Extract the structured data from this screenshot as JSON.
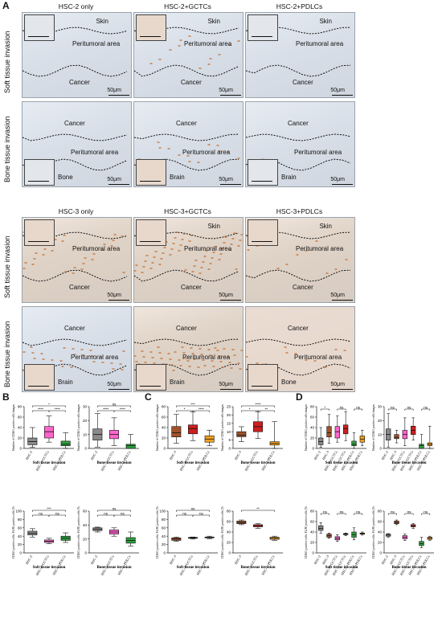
{
  "panel_letters": {
    "a": "A",
    "b": "B",
    "c": "C",
    "d": "D"
  },
  "histology_top": {
    "columns": [
      "HSC-2 only",
      "HSC-2+GCTCs",
      "HSC-2+PDLCs"
    ],
    "row_labels": [
      "Soft tissue invasion",
      "Bone tissue invasion"
    ],
    "soft": [
      {
        "skin": "Skin",
        "peri": "Peritumoral area",
        "cancer": "Cancer",
        "scale": "50μm"
      },
      {
        "skin": "Skin",
        "peri": "Peritumoral area",
        "cancer": "Cancer",
        "scale": "50μm"
      },
      {
        "skin": "Skin",
        "peri": "Peritumoral area",
        "cancer": "Cancer",
        "scale": "50μm"
      }
    ],
    "bone": [
      {
        "cancer": "Cancer",
        "peri": "Peritumoral area",
        "other": "Bone",
        "scale": "50μm"
      },
      {
        "cancer": "Cancer",
        "peri": "Peritumoral area",
        "other": "Brain",
        "scale": "50μm"
      },
      {
        "cancer": "Cancer",
        "peri": "Peritumoral area",
        "other": "Brain",
        "scale": "50μm"
      }
    ]
  },
  "histology_bottom": {
    "columns": [
      "HSC-3 only",
      "HSC-3+GCTCs",
      "HSC-3+PDLCs"
    ],
    "row_labels": [
      "Soft tissue invasion",
      "Bone tissue invasion"
    ],
    "soft": [
      {
        "skin": "",
        "peri": "Peritumoral area",
        "cancer": "Cancer",
        "scale": "50μm"
      },
      {
        "skin": "Skin",
        "peri": "Peritumoral area",
        "cancer": "Cancer",
        "scale": "50μm"
      },
      {
        "skin": "Skin",
        "peri": "Peritumoral area",
        "cancer": "Cancer",
        "scale": "50μm"
      }
    ],
    "bone": [
      {
        "cancer": "Cancer",
        "peri": "Peritumoral area",
        "other": "Brain",
        "scale": "50μm"
      },
      {
        "cancer": "Cancer",
        "peri": "Peritumoral area",
        "other": "Brain",
        "scale": "50μm"
      },
      {
        "cancer": "Cancer",
        "peri": "Peritumoral area",
        "other": "Bone",
        "scale": "50μm"
      }
    ]
  },
  "chart_data": [
    {
      "panel": "B",
      "type": "box",
      "title": "Soft tissue invasion",
      "ylabel": "Number of CD163 positive cells/images",
      "ylim": [
        0,
        80
      ],
      "yticks": [
        0,
        20,
        40,
        60,
        80
      ],
      "categories": [
        "HSC-2",
        "HSC-2+GCTCs",
        "HSC-2+PDLCs"
      ],
      "colors": [
        "#8a8a8a",
        "#ff66cc",
        "#2e9e3e"
      ],
      "boxes": [
        [
          2,
          7,
          13,
          20,
          40
        ],
        [
          12,
          20,
          32,
          42,
          62
        ],
        [
          0,
          5,
          8,
          14,
          30
        ]
      ],
      "sig": [
        "*",
        "****",
        "****"
      ]
    },
    {
      "panel": "B",
      "type": "box",
      "title": "Bone tissue invasion",
      "ylabel": "Number of CD163 positive cells/images",
      "ylim": [
        0,
        30
      ],
      "yticks": [
        0,
        10,
        20,
        30
      ],
      "categories": [
        "HSC-2",
        "HSC-2+GCTCs",
        "HSC-2+PDLCs"
      ],
      "colors": [
        "#8a8a8a",
        "#ff66cc",
        "#2e9e3e"
      ],
      "boxes": [
        [
          1,
          6,
          10,
          14,
          25
        ],
        [
          2,
          7,
          10,
          13,
          22
        ],
        [
          0,
          0,
          2,
          3,
          10
        ]
      ],
      "sig": [
        "ns",
        "****",
        "****"
      ]
    },
    {
      "panel": "B",
      "type": "bar",
      "title": "Soft tissue invasion",
      "ylabel": "CD163 positive cells/ F4/80 positive cells [%]",
      "ylim": [
        0,
        100
      ],
      "yticks": [
        0,
        20,
        40,
        60,
        80,
        100
      ],
      "categories": [
        "HSC-2",
        "HSC-2+GCTCs",
        "HSC-2+PDLCs"
      ],
      "colors": [
        "#8a8a8a",
        "#ff66cc",
        "#2e9e3e"
      ],
      "boxes": [
        [
          38,
          43,
          47,
          52,
          58
        ],
        [
          22,
          25,
          28,
          31,
          35
        ],
        [
          25,
          30,
          35,
          40,
          48
        ]
      ],
      "sig": [
        "***",
        "ns",
        "ns"
      ]
    },
    {
      "panel": "B",
      "type": "bar",
      "title": "Bone tissue invasion",
      "ylabel": "CD163 positive cells/ F4/80 positive cells [%]",
      "ylim": [
        0,
        60
      ],
      "yticks": [
        0,
        20,
        40,
        60
      ],
      "categories": [
        "HSC-2",
        "HSC-2+GCTCs",
        "HSC-2+PDLCs"
      ],
      "colors": [
        "#8a8a8a",
        "#ff66cc",
        "#2e9e3e"
      ],
      "boxes": [
        [
          30,
          32,
          34,
          36,
          37
        ],
        [
          24,
          27,
          30,
          33,
          36
        ],
        [
          10,
          14,
          18,
          22,
          30
        ]
      ],
      "sig": [
        "ns",
        "ns",
        "ns"
      ]
    },
    {
      "panel": "C",
      "type": "box",
      "title": "Soft tissue invasion",
      "ylabel": "Number of CD163 positive cells/images",
      "ylim": [
        0,
        80
      ],
      "yticks": [
        0,
        20,
        40,
        60,
        80
      ],
      "categories": [
        "HSC-3",
        "HSC-3+GCTCs",
        "HSC-3+PDLCs"
      ],
      "colors": [
        "#a0522d",
        "#cc1f1f",
        "#f7a21b"
      ],
      "boxes": [
        [
          10,
          22,
          30,
          42,
          65
        ],
        [
          15,
          28,
          38,
          45,
          70
        ],
        [
          5,
          12,
          18,
          24,
          35
        ]
      ],
      "sig": [
        "***",
        "*",
        "****"
      ]
    },
    {
      "panel": "C",
      "type": "box",
      "title": "Bone tissue invasion",
      "ylabel": "Number of CD163 positive cells/images",
      "ylim": [
        0,
        25
      ],
      "yticks": [
        0,
        5,
        10,
        15,
        20,
        25
      ],
      "categories": [
        "HSC-3",
        "HSC-3+GCTCs",
        "HSC-3+PDLCs"
      ],
      "colors": [
        "#a0522d",
        "#cc1f1f",
        "#f7a21b"
      ],
      "boxes": [
        [
          4,
          7,
          8,
          10,
          13
        ],
        [
          6,
          10,
          13,
          16,
          22
        ],
        [
          0,
          2,
          3,
          4,
          16
        ]
      ],
      "sig": [
        "****",
        "*",
        "**"
      ]
    },
    {
      "panel": "C",
      "type": "bar",
      "title": "Soft tissue invasion",
      "ylabel": "CD163 positive cells/ F4/80 positive cells [%]",
      "ylim": [
        0,
        100
      ],
      "yticks": [
        0,
        20,
        40,
        60,
        80,
        100
      ],
      "categories": [
        "HSC-3",
        "HSC-3+GCTCs",
        "HSC-3+PDLCs"
      ],
      "colors": [
        "#a0522d",
        "#cc1f1f",
        "#f7a21b"
      ],
      "boxes": [
        [
          28,
          30,
          33,
          36,
          38
        ],
        [
          33,
          35,
          36,
          37,
          38
        ],
        [
          34,
          36,
          37,
          38,
          40
        ]
      ],
      "sig": [
        "ns",
        "ns",
        "ns"
      ]
    },
    {
      "panel": "C",
      "type": "bar",
      "title": "Bone tissue invasion",
      "ylabel": "CD163 positive cells/ F4/80 positive cells [%]",
      "ylim": [
        0,
        80
      ],
      "yticks": [
        0,
        20,
        40,
        60,
        80
      ],
      "categories": [
        "HSC-3",
        "HSC-3+GCTCs",
        "HSC-3+PDLCs"
      ],
      "colors": [
        "#a0522d",
        "#cc1f1f",
        "#f7a21b"
      ],
      "boxes": [
        [
          54,
          56,
          58,
          61,
          63
        ],
        [
          47,
          50,
          52,
          54,
          56
        ],
        [
          24,
          26,
          28,
          30,
          32
        ]
      ],
      "sig": [
        "**",
        "",
        ""
      ]
    },
    {
      "panel": "D",
      "type": "box",
      "title": "Soft tissue invasion",
      "ylabel": "Number of CD163 positive cells/images",
      "ylim": [
        0,
        80
      ],
      "yticks": [
        0,
        20,
        40,
        60,
        80
      ],
      "categories": [
        "HSC-2",
        "HSC-3",
        "HSC-2+GCTCs",
        "HSC-3+GCTCs",
        "HSC-2+PDLCs",
        "HSC-3+PDLCs"
      ],
      "colors": [
        "#8a8a8a",
        "#a0522d",
        "#ff66cc",
        "#cc1f1f",
        "#2e9e3e",
        "#f7a21b"
      ],
      "boxes": [
        [
          2,
          7,
          13,
          20,
          40
        ],
        [
          10,
          22,
          30,
          42,
          65
        ],
        [
          12,
          20,
          32,
          42,
          62
        ],
        [
          15,
          28,
          38,
          45,
          70
        ],
        [
          0,
          5,
          8,
          14,
          30
        ],
        [
          5,
          12,
          18,
          24,
          35
        ]
      ],
      "sig": [
        "*",
        "ns",
        "ns"
      ]
    },
    {
      "panel": "D",
      "type": "box",
      "title": "Bone tissue invasion",
      "ylabel": "Number of CD163 positive cells/images",
      "ylim": [
        0,
        30
      ],
      "yticks": [
        0,
        10,
        20,
        30
      ],
      "categories": [
        "HSC-2",
        "HSC-3",
        "HSC-2+GCTCs",
        "HSC-3+GCTCs",
        "HSC-2+PDLCs",
        "HSC-3+PDLCs"
      ],
      "colors": [
        "#8a8a8a",
        "#a0522d",
        "#ff66cc",
        "#cc1f1f",
        "#2e9e3e",
        "#f7a21b"
      ],
      "boxes": [
        [
          1,
          6,
          10,
          14,
          25
        ],
        [
          4,
          7,
          8,
          10,
          13
        ],
        [
          2,
          7,
          10,
          13,
          22
        ],
        [
          6,
          10,
          13,
          16,
          22
        ],
        [
          0,
          0,
          2,
          3,
          10
        ],
        [
          0,
          2,
          3,
          4,
          16
        ]
      ],
      "sig": [
        "ns",
        "ns",
        "ns"
      ]
    },
    {
      "panel": "D",
      "type": "bar",
      "title": "Soft tissue invasion",
      "ylabel": "CD163 positive cells/ F4/80 positive cells [%]",
      "ylim": [
        0,
        80
      ],
      "yticks": [
        0,
        20,
        40,
        60,
        80
      ],
      "categories": [
        "HSC-2",
        "HSC-3",
        "HSC-2+GCTCs",
        "HSC-3+GCTCs",
        "HSC-2+PDLCs",
        "HSC-3+PDLCs"
      ],
      "colors": [
        "#8a8a8a",
        "#a0522d",
        "#ff66cc",
        "#cc1f1f",
        "#2e9e3e",
        "#f7a21b"
      ],
      "boxes": [
        [
          38,
          43,
          47,
          52,
          58
        ],
        [
          28,
          30,
          33,
          36,
          38
        ],
        [
          22,
          25,
          28,
          31,
          35
        ],
        [
          33,
          35,
          36,
          37,
          38
        ],
        [
          25,
          30,
          35,
          40,
          48
        ],
        [
          34,
          36,
          37,
          38,
          40
        ]
      ],
      "sig": [
        "ns",
        "ns",
        "ns"
      ]
    },
    {
      "panel": "D",
      "type": "bar",
      "title": "Bone tissue invasion",
      "ylabel": "CD163 positive cells/ F4/80 positive cells [%]",
      "ylim": [
        0,
        80
      ],
      "yticks": [
        0,
        20,
        40,
        60,
        80
      ],
      "categories": [
        "HSC-2",
        "HSC-3",
        "HSC-2+GCTCs",
        "HSC-3+GCTCs",
        "HSC-2+PDLCs",
        "HSC-3+PDLCs"
      ],
      "colors": [
        "#8a8a8a",
        "#a0522d",
        "#ff66cc",
        "#cc1f1f",
        "#2e9e3e",
        "#f7a21b"
      ],
      "boxes": [
        [
          30,
          32,
          34,
          36,
          37
        ],
        [
          54,
          56,
          58,
          61,
          63
        ],
        [
          24,
          27,
          30,
          33,
          36
        ],
        [
          47,
          50,
          52,
          54,
          56
        ],
        [
          10,
          14,
          18,
          22,
          30
        ],
        [
          24,
          26,
          28,
          30,
          32
        ]
      ],
      "sig": [
        "ns",
        "ns",
        "ns"
      ]
    }
  ]
}
